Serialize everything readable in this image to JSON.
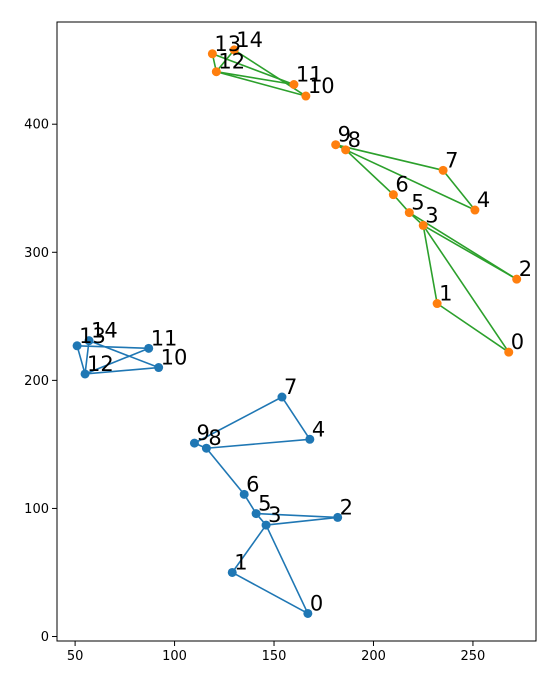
{
  "chart_data": {
    "type": "scatter",
    "title": "",
    "xlabel": "",
    "ylabel": "",
    "xlim": [
      40.9,
      281.7
    ],
    "ylim": [
      -3.5,
      479.8
    ],
    "grid": false,
    "legend": "none",
    "x_ticks": [
      50,
      100,
      150,
      200,
      250
    ],
    "y_ticks": [
      0,
      100,
      200,
      300,
      400
    ],
    "colors": {
      "blue": "#1f77b4",
      "orange": "#ff7f0e",
      "green": "#2ca02c"
    },
    "series": [
      {
        "point_color": "#1f77b4",
        "line_color": "#1f77b4",
        "points": [
          {
            "label": "0",
            "x": 167,
            "y": 18
          },
          {
            "label": "1",
            "x": 129,
            "y": 50
          },
          {
            "label": "2",
            "x": 182,
            "y": 93
          },
          {
            "label": "3",
            "x": 146,
            "y": 87
          },
          {
            "label": "4",
            "x": 168,
            "y": 154
          },
          {
            "label": "5",
            "x": 141,
            "y": 96
          },
          {
            "label": "6",
            "x": 135,
            "y": 111
          },
          {
            "label": "7",
            "x": 154,
            "y": 187
          },
          {
            "label": "8",
            "x": 116,
            "y": 147
          },
          {
            "label": "9",
            "x": 110,
            "y": 151
          },
          {
            "label": "10",
            "x": 92,
            "y": 210
          },
          {
            "label": "11",
            "x": 87,
            "y": 225
          },
          {
            "label": "12",
            "x": 55,
            "y": 205
          },
          {
            "label": "13",
            "x": 51,
            "y": 227
          },
          {
            "label": "14",
            "x": 57,
            "y": 231
          }
        ],
        "edges": [
          [
            0,
            1
          ],
          [
            1,
            3
          ],
          [
            3,
            0
          ],
          [
            2,
            3
          ],
          [
            3,
            5
          ],
          [
            5,
            2
          ],
          [
            5,
            6
          ],
          [
            6,
            8
          ],
          [
            8,
            9
          ],
          [
            8,
            4
          ],
          [
            4,
            7
          ],
          [
            7,
            9
          ],
          [
            10,
            12
          ],
          [
            12,
            14
          ],
          [
            14,
            10
          ],
          [
            11,
            13
          ],
          [
            13,
            12
          ],
          [
            12,
            11
          ]
        ]
      },
      {
        "point_color": "#ff7f0e",
        "line_color": "#2ca02c",
        "points": [
          {
            "label": "0",
            "x": 268,
            "y": 222
          },
          {
            "label": "1",
            "x": 232,
            "y": 260
          },
          {
            "label": "2",
            "x": 272,
            "y": 279
          },
          {
            "label": "3",
            "x": 225,
            "y": 321
          },
          {
            "label": "4",
            "x": 251,
            "y": 333
          },
          {
            "label": "5",
            "x": 218,
            "y": 331
          },
          {
            "label": "6",
            "x": 210,
            "y": 345
          },
          {
            "label": "7",
            "x": 235,
            "y": 364
          },
          {
            "label": "8",
            "x": 186,
            "y": 380
          },
          {
            "label": "9",
            "x": 181,
            "y": 384
          },
          {
            "label": "10",
            "x": 166,
            "y": 422
          },
          {
            "label": "11",
            "x": 160,
            "y": 431
          },
          {
            "label": "12",
            "x": 121,
            "y": 441
          },
          {
            "label": "13",
            "x": 119,
            "y": 455
          },
          {
            "label": "14",
            "x": 130,
            "y": 458
          }
        ],
        "edges": [
          [
            0,
            1
          ],
          [
            1,
            3
          ],
          [
            3,
            0
          ],
          [
            2,
            3
          ],
          [
            3,
            5
          ],
          [
            5,
            2
          ],
          [
            5,
            6
          ],
          [
            6,
            8
          ],
          [
            8,
            9
          ],
          [
            8,
            4
          ],
          [
            4,
            7
          ],
          [
            7,
            9
          ],
          [
            10,
            12
          ],
          [
            12,
            14
          ],
          [
            14,
            10
          ],
          [
            11,
            13
          ],
          [
            13,
            12
          ],
          [
            12,
            11
          ]
        ]
      }
    ]
  }
}
